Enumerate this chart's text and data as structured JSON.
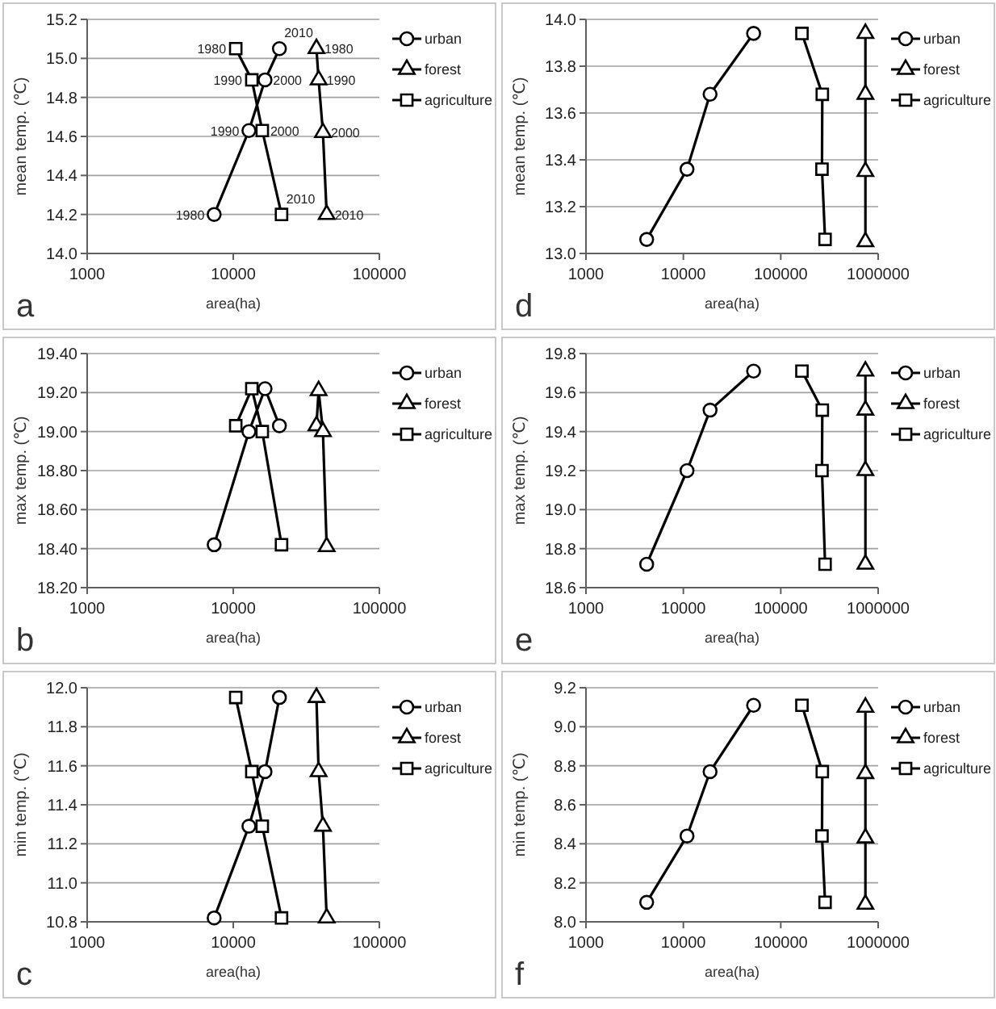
{
  "chart_data": [
    {
      "type": "line",
      "xlabel": "area(ha)",
      "ylabel": "mean temp. (℃)",
      "log": "x",
      "xlim": [
        1000,
        100000
      ],
      "xticks": [
        1000,
        10000,
        100000
      ],
      "ylim": [
        14.0,
        15.2
      ],
      "yticks": [
        {
          "value": 14.0,
          "label": "14.0"
        },
        {
          "value": 14.2,
          "label": "14.2"
        },
        {
          "value": 14.4,
          "label": "14.4"
        },
        {
          "value": 14.6,
          "label": "14.6"
        },
        {
          "value": 14.8,
          "label": "14.8"
        },
        {
          "value": 15.0,
          "label": "15.0"
        },
        {
          "value": 15.2,
          "label": "15.2"
        }
      ],
      "grid": "y",
      "legend": "right",
      "series": [
        {
          "name": "urban",
          "color": "#000000",
          "marker": "circle",
          "x": [
            7400,
            12800,
            16500,
            20700
          ],
          "values": [
            14.2,
            14.63,
            14.89,
            15.05
          ]
        },
        {
          "name": "forest",
          "color": "#000000",
          "marker": "triangle",
          "x": [
            37100,
            38400,
            41100,
            43600
          ],
          "values": [
            15.05,
            14.89,
            14.62,
            14.2
          ]
        },
        {
          "name": "agriculture",
          "color": "#000000",
          "marker": "square",
          "x": [
            10400,
            13400,
            15800,
            21400
          ],
          "values": [
            15.05,
            14.89,
            14.63,
            14.2
          ]
        }
      ],
      "annotations": [
        "a",
        {
          "text": "1980",
          "x": 7400,
          "y": 14.2
        },
        {
          "text": "1990",
          "x": 12800,
          "y": 14.63
        },
        {
          "text": "2000",
          "x": 16500,
          "y": 14.89
        },
        {
          "text": "2010",
          "x": 20700,
          "y": 15.05
        },
        {
          "text": "1980",
          "x": 37100,
          "y": 15.05
        },
        {
          "text": "1990",
          "x": 38400,
          "y": 14.89
        },
        {
          "text": "2000",
          "x": 41100,
          "y": 14.62
        },
        {
          "text": "2010",
          "x": 43600,
          "y": 14.2
        },
        {
          "text": "1980",
          "x": 10400,
          "y": 15.05
        },
        {
          "text": "1990",
          "x": 13400,
          "y": 14.89
        },
        {
          "text": "2000",
          "x": 15800,
          "y": 14.63
        },
        {
          "text": "2010",
          "x": 21400,
          "y": 14.2
        }
      ]
    },
    {
      "type": "line",
      "xlabel": "area(ha)",
      "ylabel": "mean temp. (℃)",
      "log": "x",
      "xlim": [
        1000,
        1000000
      ],
      "xticks": [
        1000,
        10000,
        100000,
        1000000
      ],
      "ylim": [
        13.0,
        14.0
      ],
      "yticks": [
        {
          "value": 13.0,
          "label": "13.0"
        },
        {
          "value": 13.2,
          "label": "13.2"
        },
        {
          "value": 13.4,
          "label": "13.4"
        },
        {
          "value": 13.6,
          "label": "13.6"
        },
        {
          "value": 13.8,
          "label": "13.8"
        },
        {
          "value": 14.0,
          "label": "14.0"
        }
      ],
      "grid": "y",
      "legend": "right",
      "series": [
        {
          "name": "urban",
          "color": "#000000",
          "marker": "circle",
          "x": [
            4200,
            10900,
            18800,
            52600
          ],
          "values": [
            13.06,
            13.36,
            13.68,
            13.94
          ]
        },
        {
          "name": "forest",
          "color": "#000000",
          "marker": "triangle",
          "x": [
            740000,
            740000,
            740000,
            740000
          ],
          "values": [
            13.05,
            13.35,
            13.68,
            13.94
          ]
        },
        {
          "name": "agriculture",
          "color": "#000000",
          "marker": "square",
          "x": [
            165000,
            267000,
            265000,
            285000
          ],
          "values": [
            13.94,
            13.68,
            13.36,
            13.06
          ]
        }
      ],
      "annotations": [
        "d"
      ]
    },
    {
      "type": "line",
      "xlabel": "area(ha)",
      "ylabel": "max temp. (℃)",
      "log": "x",
      "xlim": [
        1000,
        100000
      ],
      "xticks": [
        1000,
        10000,
        100000
      ],
      "ylim": [
        18.2,
        19.4
      ],
      "yticks": [
        {
          "value": 18.2,
          "label": "18.20"
        },
        {
          "value": 18.4,
          "label": "18.40"
        },
        {
          "value": 18.6,
          "label": "18.60"
        },
        {
          "value": 18.8,
          "label": "18.80"
        },
        {
          "value": 19.0,
          "label": "19.00"
        },
        {
          "value": 19.2,
          "label": "19.20"
        },
        {
          "value": 19.4,
          "label": "19.40"
        }
      ],
      "grid": "y",
      "legend": "right",
      "series": [
        {
          "name": "urban",
          "color": "#000000",
          "marker": "circle",
          "x": [
            7400,
            12800,
            16500,
            20700
          ],
          "values": [
            18.42,
            19.0,
            19.22,
            19.03
          ]
        },
        {
          "name": "forest",
          "color": "#000000",
          "marker": "triangle",
          "x": [
            37100,
            38400,
            41100,
            43600
          ],
          "values": [
            19.03,
            19.21,
            19.0,
            18.41
          ]
        },
        {
          "name": "agriculture",
          "color": "#000000",
          "marker": "square",
          "x": [
            10400,
            13400,
            15800,
            21400
          ],
          "values": [
            19.03,
            19.22,
            19.0,
            18.42
          ]
        }
      ],
      "annotations": [
        "b"
      ]
    },
    {
      "type": "line",
      "xlabel": "area(ha)",
      "ylabel": "max temp. (℃)",
      "log": "x",
      "xlim": [
        1000,
        1000000
      ],
      "xticks": [
        1000,
        10000,
        100000,
        1000000
      ],
      "ylim": [
        18.6,
        19.8
      ],
      "yticks": [
        {
          "value": 18.6,
          "label": "18.6"
        },
        {
          "value": 18.8,
          "label": "18.8"
        },
        {
          "value": 19.0,
          "label": "19.0"
        },
        {
          "value": 19.2,
          "label": "19.2"
        },
        {
          "value": 19.4,
          "label": "19.4"
        },
        {
          "value": 19.6,
          "label": "19.6"
        },
        {
          "value": 19.8,
          "label": "19.8"
        }
      ],
      "grid": "y",
      "legend": "right",
      "series": [
        {
          "name": "urban",
          "color": "#000000",
          "marker": "circle",
          "x": [
            4200,
            10900,
            18800,
            52600
          ],
          "values": [
            18.72,
            19.2,
            19.51,
            19.71
          ]
        },
        {
          "name": "forest",
          "color": "#000000",
          "marker": "triangle",
          "x": [
            740000,
            740000,
            740000,
            740000
          ],
          "values": [
            18.72,
            19.2,
            19.51,
            19.71
          ]
        },
        {
          "name": "agriculture",
          "color": "#000000",
          "marker": "square",
          "x": [
            165000,
            267000,
            265000,
            285000
          ],
          "values": [
            19.71,
            19.51,
            19.2,
            18.72
          ]
        }
      ],
      "annotations": [
        "e"
      ]
    },
    {
      "type": "line",
      "xlabel": "area(ha)",
      "ylabel": "min temp. (℃)",
      "log": "x",
      "xlim": [
        1000,
        100000
      ],
      "xticks": [
        1000,
        10000,
        100000
      ],
      "ylim": [
        10.8,
        12.0
      ],
      "yticks": [
        {
          "value": 10.8,
          "label": "10.8"
        },
        {
          "value": 11.0,
          "label": "11.0"
        },
        {
          "value": 11.2,
          "label": "11.2"
        },
        {
          "value": 11.4,
          "label": "11.4"
        },
        {
          "value": 11.6,
          "label": "11.6"
        },
        {
          "value": 11.8,
          "label": "11.8"
        },
        {
          "value": 12.0,
          "label": "12.0"
        }
      ],
      "grid": "y",
      "legend": "right",
      "series": [
        {
          "name": "urban",
          "color": "#000000",
          "marker": "circle",
          "x": [
            7400,
            12800,
            16500,
            20700
          ],
          "values": [
            10.82,
            11.29,
            11.57,
            11.95
          ]
        },
        {
          "name": "forest",
          "color": "#000000",
          "marker": "triangle",
          "x": [
            37100,
            38400,
            41100,
            43600
          ],
          "values": [
            11.95,
            11.57,
            11.29,
            10.82
          ]
        },
        {
          "name": "agriculture",
          "color": "#000000",
          "marker": "square",
          "x": [
            10400,
            13400,
            15800,
            21400
          ],
          "values": [
            11.95,
            11.57,
            11.29,
            10.82
          ]
        }
      ],
      "annotations": [
        "c"
      ]
    },
    {
      "type": "line",
      "xlabel": "area(ha)",
      "ylabel": "min temp. (℃)",
      "log": "x",
      "xlim": [
        1000,
        1000000
      ],
      "xticks": [
        1000,
        10000,
        100000,
        1000000
      ],
      "ylim": [
        8.0,
        9.2
      ],
      "yticks": [
        {
          "value": 8.0,
          "label": "8.0"
        },
        {
          "value": 8.2,
          "label": "8.2"
        },
        {
          "value": 8.4,
          "label": "8.4"
        },
        {
          "value": 8.6,
          "label": "8.6"
        },
        {
          "value": 8.8,
          "label": "8.8"
        },
        {
          "value": 9.0,
          "label": "9.0"
        },
        {
          "value": 9.2,
          "label": "9.2"
        }
      ],
      "grid": "y",
      "legend": "right",
      "series": [
        {
          "name": "urban",
          "color": "#000000",
          "marker": "circle",
          "x": [
            4200,
            10900,
            18800,
            52600
          ],
          "values": [
            8.1,
            8.44,
            8.77,
            9.11
          ]
        },
        {
          "name": "forest",
          "color": "#000000",
          "marker": "triangle",
          "x": [
            740000,
            740000,
            740000,
            740000
          ],
          "values": [
            8.09,
            8.43,
            8.76,
            9.1
          ]
        },
        {
          "name": "agriculture",
          "color": "#000000",
          "marker": "square",
          "x": [
            165000,
            267000,
            265000,
            285000
          ],
          "values": [
            9.11,
            8.77,
            8.44,
            8.1
          ]
        }
      ],
      "annotations": [
        "f"
      ]
    }
  ]
}
